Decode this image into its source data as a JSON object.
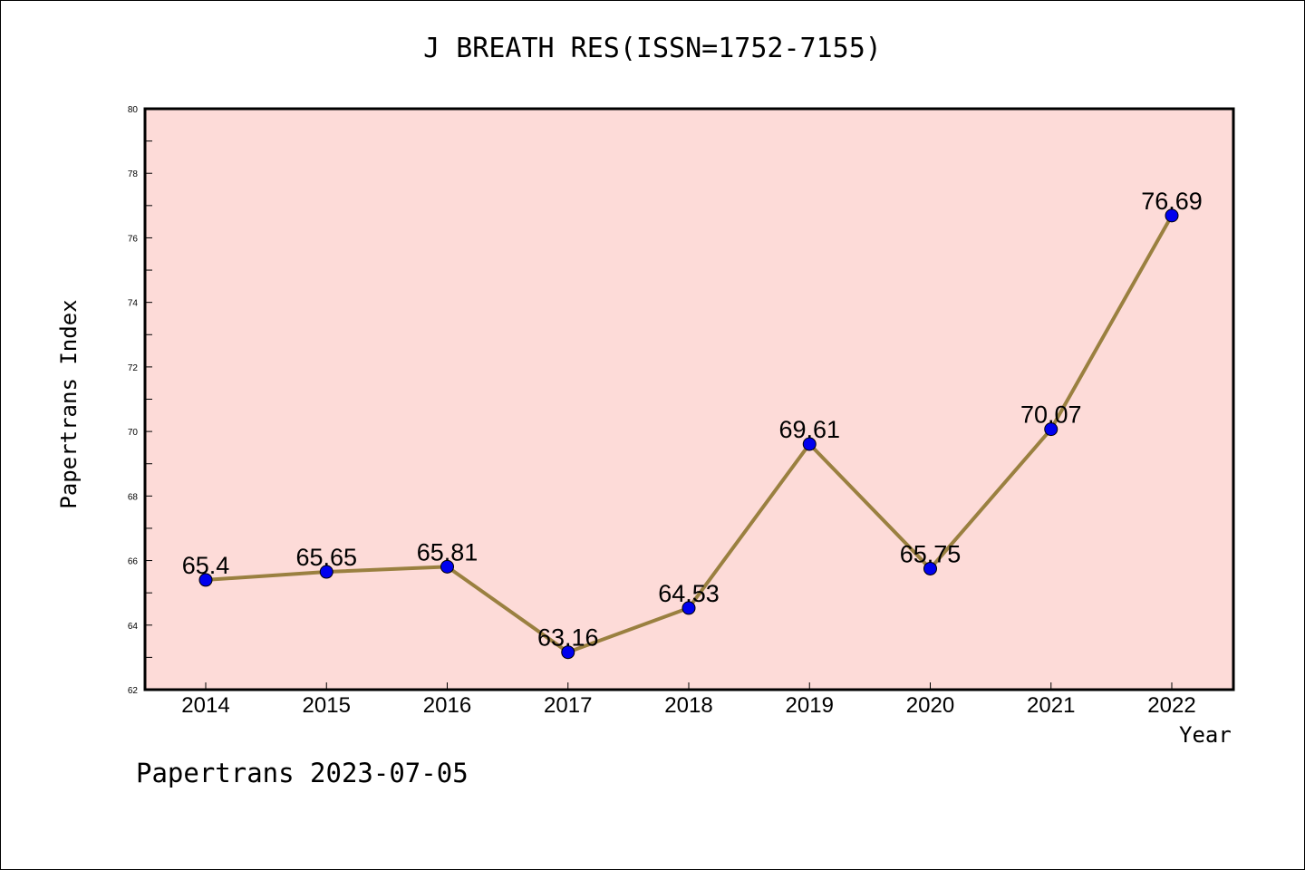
{
  "title": "J BREATH RES(ISSN=1752-7155)",
  "footer": "Papertrans 2023-07-05",
  "colors": {
    "plot_background": "#fddbd8",
    "line": "#9a8040",
    "marker": "#0000ee"
  },
  "chart_data": {
    "type": "line",
    "title": "J BREATH RES(ISSN=1752-7155)",
    "xlabel": "Year",
    "ylabel": "Papertrans Index",
    "categories": [
      "2014",
      "2015",
      "2016",
      "2017",
      "2018",
      "2019",
      "2020",
      "2021",
      "2022"
    ],
    "series": [
      {
        "values": [
          65.4,
          65.65,
          65.81,
          63.16,
          64.53,
          69.61,
          65.75,
          70.07,
          76.69
        ],
        "labels": [
          "65.4",
          "65.65",
          "65.81",
          "63.16",
          "64.53",
          "69.61",
          "65.75",
          "70.07",
          "76.69"
        ]
      }
    ],
    "ylim": [
      62,
      80
    ],
    "yticks": [
      "62",
      "64",
      "66",
      "68",
      "70",
      "72",
      "74",
      "76",
      "78",
      "80"
    ],
    "grid": false,
    "legend": "none"
  }
}
